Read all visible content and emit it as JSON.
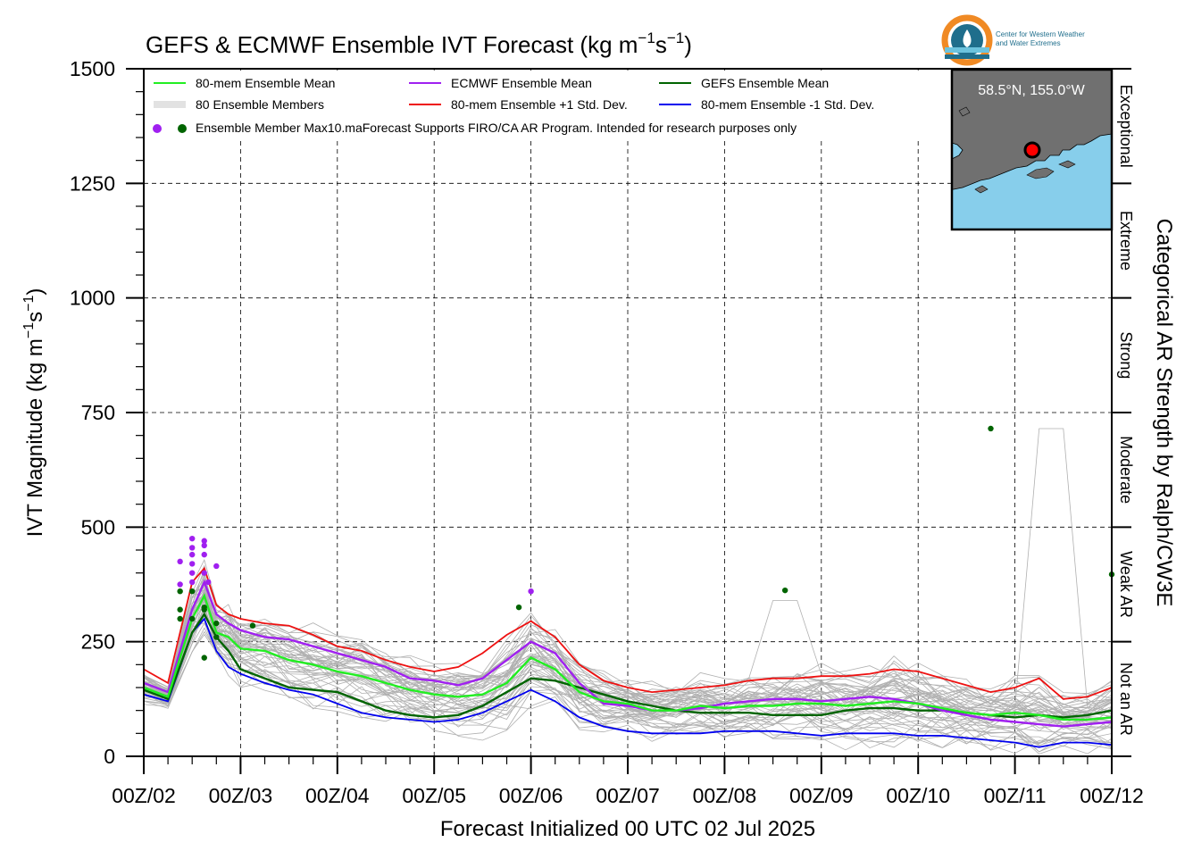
{
  "logo": {
    "line1": "Center for Western Weather",
    "line2": "and Water Extremes",
    "colors": {
      "orange": "#f08a24",
      "teal": "#1f6e8c",
      "light": "#6cc3dd"
    }
  },
  "chart_data": {
    "type": "line",
    "title": "GEFS & ECMWF Ensemble IVT Forecast (kg m⁻¹s⁻¹)",
    "title_parts": {
      "base": "GEFS & ECMWF Ensemble IVT Forecast (kg m",
      "sup1": "−1",
      "mid": "s",
      "sup2": "−1",
      "end": ")"
    },
    "ylabel": "IVT Magnitude (kg m⁻¹s⁻¹)",
    "ylabel_parts": {
      "base": "IVT Magnitude (kg m",
      "sup1": "−1",
      "mid": "s",
      "sup2": "−1",
      "end": ")"
    },
    "xlabel": "Forecast Initialized 00 UTC 02 Jul 2025",
    "right_label": "Categorical AR Strength by Ralph/CW3E",
    "ylim": [
      0,
      1500
    ],
    "xlim": [
      0,
      240
    ],
    "x_unit": "forecast hour",
    "y_ticks": [
      0,
      250,
      500,
      750,
      1000,
      1250,
      1500
    ],
    "y_tick_labels": [
      "0",
      "250",
      "500",
      "750",
      "1000",
      "1250",
      "1500"
    ],
    "x_ticks": [
      0,
      24,
      48,
      72,
      96,
      120,
      144,
      168,
      192,
      216,
      240
    ],
    "x_tick_labels": [
      "00Z/02",
      "00Z/03",
      "00Z/04",
      "00Z/05",
      "00Z/06",
      "00Z/07",
      "00Z/08",
      "00Z/09",
      "00Z/10",
      "00Z/11",
      "00Z/12"
    ],
    "grid": true,
    "categories": [
      {
        "label": "Not an AR",
        "min": 0,
        "max": 250
      },
      {
        "label": "Weak AR",
        "min": 250,
        "max": 500
      },
      {
        "label": "Moderate",
        "min": 500,
        "max": 750
      },
      {
        "label": "Strong",
        "min": 750,
        "max": 1000
      },
      {
        "label": "Extreme",
        "min": 1000,
        "max": 1250
      },
      {
        "label": "Exceptional",
        "min": 1250,
        "max": 1500
      }
    ],
    "legend": {
      "placement": "top-left",
      "entries": [
        {
          "label": "80-mem Ensemble Mean",
          "color": "#22ee22",
          "kind": "line"
        },
        {
          "label": "ECMWF Ensemble Mean",
          "color": "#a020f0",
          "kind": "line"
        },
        {
          "label": "GEFS Ensemble Mean",
          "color": "#006400",
          "kind": "line"
        },
        {
          "label": "80 Ensemble Members",
          "color": "#b0b0b0",
          "kind": "members"
        },
        {
          "label": "80-mem Ensemble +1 Std. Dev.",
          "color": "#ee1111",
          "kind": "line"
        },
        {
          "label": "80-mem Ensemble -1 Std. Dev.",
          "color": "#0000ee",
          "kind": "line"
        },
        {
          "label": "Ensemble Member Max10.maForecast Supports FIRO/CA AR Program. Intended for research purposes only",
          "color": "#a020f0",
          "color2": "#006400",
          "kind": "dots"
        }
      ]
    },
    "inset_map": {
      "label": "58.5°N, 155.0°W",
      "placement": "top-right",
      "land_color": "#707070",
      "water_color": "#87ceeb",
      "marker_color": "#ff0000"
    },
    "series": [
      {
        "name": "80-mem Ensemble Mean",
        "color": "#22ee22",
        "width": 2.4,
        "x": [
          0,
          6,
          12,
          15,
          18,
          21,
          24,
          30,
          36,
          42,
          48,
          54,
          60,
          66,
          72,
          78,
          84,
          90,
          96,
          102,
          108,
          114,
          120,
          126,
          132,
          138,
          144,
          150,
          156,
          162,
          168,
          174,
          180,
          186,
          192,
          198,
          204,
          210,
          216,
          222,
          228,
          234,
          240
        ],
        "values": [
          150,
          130,
          300,
          350,
          270,
          260,
          235,
          230,
          210,
          200,
          185,
          175,
          160,
          145,
          135,
          130,
          135,
          160,
          215,
          190,
          140,
          120,
          115,
          100,
          100,
          110,
          105,
          110,
          110,
          115,
          115,
          110,
          115,
          120,
          115,
          105,
          95,
          90,
          95,
          90,
          80,
          80,
          85
        ]
      },
      {
        "name": "ECMWF Ensemble Mean",
        "color": "#a020f0",
        "width": 2.4,
        "x": [
          0,
          6,
          12,
          15,
          18,
          21,
          24,
          30,
          36,
          42,
          48,
          54,
          60,
          66,
          72,
          78,
          84,
          90,
          96,
          102,
          108,
          114,
          120,
          126,
          132,
          138,
          144,
          150,
          156,
          162,
          168,
          174,
          180,
          186,
          192,
          198,
          204,
          210,
          216,
          222,
          228,
          234,
          240
        ],
        "values": [
          160,
          140,
          320,
          380,
          310,
          290,
          275,
          260,
          255,
          240,
          225,
          210,
          195,
          170,
          165,
          155,
          170,
          210,
          250,
          225,
          160,
          115,
          110,
          100,
          100,
          105,
          115,
          120,
          125,
          125,
          120,
          125,
          130,
          125,
          115,
          100,
          90,
          80,
          75,
          70,
          65,
          70,
          75
        ]
      },
      {
        "name": "GEFS Ensemble Mean",
        "color": "#006400",
        "width": 2.4,
        "x": [
          0,
          6,
          12,
          15,
          18,
          21,
          24,
          30,
          36,
          42,
          48,
          54,
          60,
          66,
          72,
          78,
          84,
          90,
          96,
          102,
          108,
          114,
          120,
          126,
          132,
          138,
          144,
          150,
          156,
          162,
          168,
          174,
          180,
          186,
          192,
          198,
          204,
          210,
          216,
          222,
          228,
          234,
          240
        ],
        "values": [
          145,
          125,
          270,
          310,
          260,
          230,
          190,
          170,
          150,
          145,
          140,
          120,
          100,
          90,
          85,
          90,
          110,
          140,
          170,
          165,
          150,
          135,
          120,
          110,
          100,
          95,
          95,
          95,
          90,
          90,
          90,
          100,
          105,
          105,
          100,
          100,
          95,
          90,
          85,
          90,
          85,
          90,
          100
        ]
      },
      {
        "name": "80-mem Ensemble +1 Std. Dev.",
        "color": "#ee1111",
        "width": 1.8,
        "x": [
          0,
          6,
          12,
          15,
          18,
          21,
          24,
          30,
          36,
          42,
          48,
          54,
          60,
          66,
          72,
          78,
          84,
          90,
          96,
          102,
          108,
          114,
          120,
          126,
          132,
          138,
          144,
          150,
          156,
          162,
          168,
          174,
          180,
          186,
          192,
          198,
          204,
          210,
          216,
          222,
          228,
          234,
          240
        ],
        "values": [
          190,
          160,
          380,
          410,
          330,
          310,
          300,
          290,
          285,
          265,
          240,
          230,
          210,
          195,
          185,
          195,
          225,
          265,
          295,
          260,
          200,
          165,
          150,
          140,
          145,
          150,
          155,
          165,
          170,
          170,
          175,
          175,
          180,
          190,
          185,
          170,
          155,
          140,
          150,
          170,
          125,
          130,
          150
        ]
      },
      {
        "name": "80-mem Ensemble -1 Std. Dev.",
        "color": "#0000ee",
        "width": 1.8,
        "x": [
          0,
          6,
          12,
          15,
          18,
          21,
          24,
          30,
          36,
          42,
          48,
          54,
          60,
          66,
          72,
          78,
          84,
          90,
          96,
          102,
          108,
          114,
          120,
          126,
          132,
          138,
          144,
          150,
          156,
          162,
          168,
          174,
          180,
          186,
          192,
          198,
          204,
          210,
          216,
          222,
          228,
          234,
          240
        ],
        "values": [
          135,
          120,
          270,
          300,
          230,
          195,
          180,
          160,
          145,
          135,
          115,
          95,
          85,
          80,
          75,
          80,
          95,
          120,
          145,
          120,
          85,
          65,
          55,
          50,
          50,
          50,
          55,
          55,
          55,
          50,
          45,
          50,
          50,
          50,
          45,
          45,
          40,
          35,
          30,
          20,
          30,
          30,
          25
        ]
      }
    ],
    "max_points": [
      {
        "name": "ECMWF member max",
        "color": "#a020f0",
        "x": [
          9,
          9,
          12,
          12,
          12,
          12,
          12,
          12,
          15,
          15,
          15,
          15,
          16,
          18,
          96
        ],
        "y": [
          425,
          375,
          475,
          455,
          440,
          420,
          400,
          380,
          470,
          460,
          440,
          400,
          380,
          415,
          360
        ]
      },
      {
        "name": "GEFS member max",
        "color": "#006400",
        "x": [
          9,
          9,
          9,
          12,
          12,
          15,
          15,
          15,
          18,
          18,
          27,
          93,
          159,
          210,
          240
        ],
        "y": [
          360,
          320,
          300,
          360,
          300,
          325,
          320,
          215,
          290,
          260,
          285,
          325,
          362,
          715,
          397
        ]
      }
    ]
  }
}
